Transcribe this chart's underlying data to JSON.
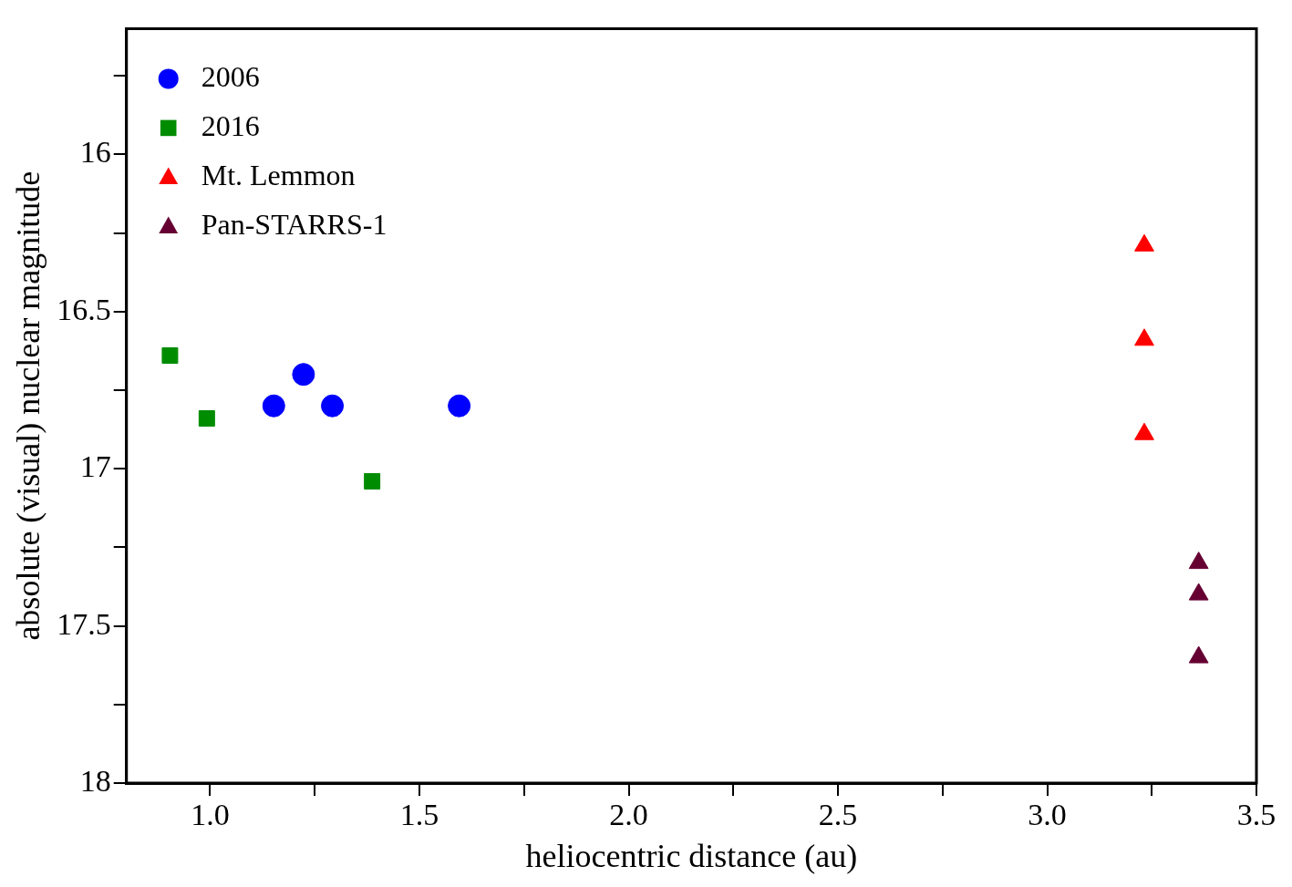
{
  "chart_data": {
    "type": "scatter",
    "xlabel": "heliocentric distance (au)",
    "ylabel": "absolute (visual) nuclear magnitude",
    "xlim": [
      0.8,
      3.5
    ],
    "xticks": [
      {
        "value": 1,
        "label": "1.0"
      },
      {
        "value": 1.25,
        "label": null
      },
      {
        "value": 1.5,
        "label": "1.5"
      },
      {
        "value": 1.75,
        "label": null
      },
      {
        "value": 2,
        "label": "2.0"
      },
      {
        "value": 2.25,
        "label": null
      },
      {
        "value": 2.5,
        "label": "2.5"
      },
      {
        "value": 2.75,
        "label": null
      },
      {
        "value": 3,
        "label": "3.0"
      },
      {
        "value": 3.25,
        "label": null
      },
      {
        "value": 3.5,
        "label": "3.5"
      }
    ],
    "ylim": [
      18,
      15.6
    ],
    "yticks": [
      {
        "value": 15.75,
        "label": null
      },
      16,
      {
        "value": 16.25,
        "label": null
      },
      16.5,
      {
        "value": 16.75,
        "label": null
      },
      17,
      {
        "value": 17.25,
        "label": null
      },
      17.5,
      {
        "value": 17.75,
        "label": null
      },
      18
    ],
    "grid": false,
    "legend": "top left",
    "series": [
      {
        "name": "2006",
        "color": "#0000ff",
        "marker": "circle",
        "x": [
          1.152,
          1.223,
          1.292,
          1.595
        ],
        "values": [
          16.8,
          16.7,
          16.8,
          16.8
        ]
      },
      {
        "name": "2016",
        "color": "#008c00",
        "marker": "square",
        "x": [
          0.904,
          0.992,
          1.387
        ],
        "values": [
          16.64,
          16.84,
          17.04
        ]
      },
      {
        "name": "Mt. Lemmon",
        "color": "#ff0000",
        "marker": "triangle",
        "x": [
          3.232,
          3.232,
          3.232
        ],
        "values": [
          16.29,
          16.59,
          16.89
        ]
      },
      {
        "name": "Pan-STARRS-1",
        "color": "#660033",
        "marker": "triangle",
        "x": [
          3.362,
          3.362,
          3.362
        ],
        "values": [
          17.3,
          17.4,
          17.6
        ]
      }
    ]
  }
}
